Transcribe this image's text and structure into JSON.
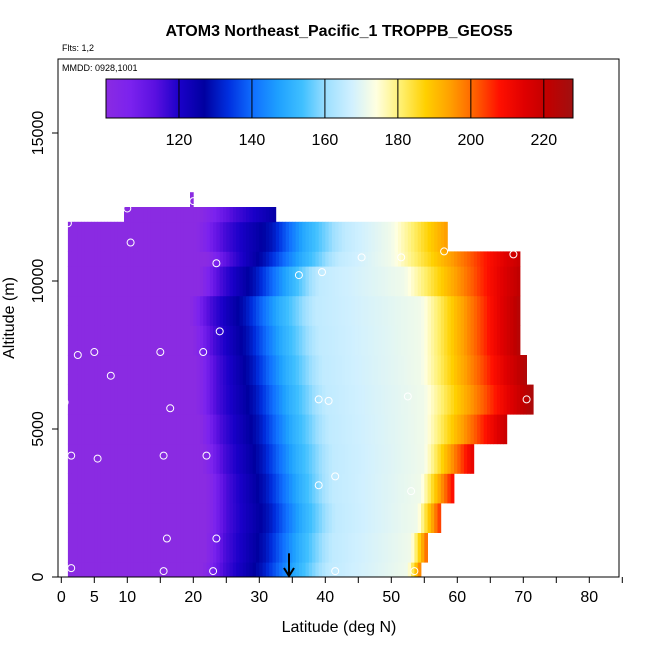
{
  "chart_data": {
    "type": "heatmap",
    "title": "ATOM3 Northeast_Pacific_1 TROPPB_GEOS5",
    "subtitle_lines": [
      "Flts: 1,2",
      "MMDD: 0928,1001"
    ],
    "xlabel": "Latitude (deg N)",
    "ylabel": "Altitude (m)",
    "xlim": [
      -0.5,
      84.5
    ],
    "ylim": [
      0,
      17500
    ],
    "x_ticks": [
      0,
      5,
      10,
      20,
      30,
      40,
      50,
      60,
      70,
      80
    ],
    "x_minor_ticks": [
      15,
      25,
      35,
      45,
      55,
      65,
      75,
      85
    ],
    "y_ticks": [
      0,
      5000,
      10000,
      15000
    ],
    "grid": false,
    "colorbar": {
      "placement": "top-inside",
      "min": 100,
      "max": 228,
      "ticks": [
        120,
        140,
        160,
        180,
        200,
        220
      ],
      "colors": [
        "#8a2be2",
        "#7b22ee",
        "#5a10e0",
        "#1a00c8",
        "#0000a0",
        "#0030e0",
        "#1070ff",
        "#1ea0ff",
        "#40c0ff",
        "#a0e0ff",
        "#d0f0ff",
        "#ffffe0",
        "#fff070",
        "#ffd000",
        "#ffa000",
        "#ff6000",
        "#ff1000",
        "#e00000",
        "#c00000",
        "#a01010"
      ]
    },
    "series": [
      {
        "kind": "field",
        "rows": [
          {
            "alt": [
              0,
              500
            ],
            "x_start": 1,
            "x_end": 54.5,
            "lat_breaks": [
              21.5,
              24.5,
              30.5,
              35.5,
              40.5,
              52.5
            ],
            "edge": 200
          },
          {
            "alt": [
              500,
              1500
            ],
            "x_start": 1,
            "x_end": 55.5,
            "lat_breaks": [
              21.8,
              24.8,
              31,
              36,
              41,
              53
            ],
            "edge": 202
          },
          {
            "alt": [
              1500,
              2500
            ],
            "x_start": 1,
            "x_end": 57.5,
            "lat_breaks": [
              22,
              25,
              31.5,
              36.5,
              41.5,
              54
            ],
            "edge": 206
          },
          {
            "alt": [
              2500,
              3500
            ],
            "x_start": 1,
            "x_end": 59.5,
            "lat_breaks": [
              22,
              25,
              31,
              36,
              41,
              54.5
            ],
            "edge": 210
          },
          {
            "alt": [
              3500,
              4500
            ],
            "x_start": 1,
            "x_end": 62.5,
            "lat_breaks": [
              21.5,
              24.5,
              30.5,
              35.5,
              41,
              55
            ],
            "edge": 214
          },
          {
            "alt": [
              4500,
              5500
            ],
            "x_start": 1,
            "x_end": 67.5,
            "lat_breaks": [
              21,
              24,
              30,
              35,
              40.5,
              55
            ],
            "edge": 220
          },
          {
            "alt": [
              5500,
              6500
            ],
            "x_start": 1,
            "x_end": 71.5,
            "lat_breaks": [
              20.5,
              23.5,
              29.5,
              34.5,
              40,
              55
            ],
            "edge": 226
          },
          {
            "alt": [
              6500,
              7500
            ],
            "x_start": 1,
            "x_end": 70.5,
            "lat_breaks": [
              20.5,
              23.5,
              29,
              34,
              39.5,
              54.5
            ],
            "edge": 225
          },
          {
            "alt": [
              7500,
              8500
            ],
            "x_start": 1,
            "x_end": 69.5,
            "lat_breaks": [
              20,
              23,
              28.5,
              33.5,
              39,
              54.5
            ],
            "edge": 224
          },
          {
            "alt": [
              8500,
              9500
            ],
            "x_start": 1,
            "x_end": 69.5,
            "lat_breaks": [
              19.5,
              22.5,
              28,
              33,
              38.5,
              54.5
            ],
            "edge": 224
          },
          {
            "alt": [
              9500,
              10500
            ],
            "x_start": 1,
            "x_end": 69.5,
            "lat_breaks": [
              21,
              24,
              29.5,
              34.5,
              39,
              52
            ],
            "edge": 222
          },
          {
            "alt": [
              10500,
              11000
            ],
            "x_start": 1,
            "x_end": 69.5,
            "lat_breaks": [
              22,
              25.5,
              31,
              36.5,
              42,
              50
            ],
            "edge": 220
          },
          {
            "alt": [
              11000,
              12000
            ],
            "x_start": 1,
            "x_end": 58.5,
            "lat_breaks": [
              20.5,
              24.5,
              32,
              37,
              43,
              50
            ],
            "edge": 195
          },
          {
            "alt": [
              12000,
              12500
            ],
            "x_start": 9.5,
            "x_end": 32.5,
            "lat_breaks": [
              21,
              26,
              35,
              40,
              46,
              55
            ],
            "edge": 135
          },
          {
            "alt": [
              12500,
              13000
            ],
            "x_start": 19.5,
            "x_end": 20,
            "lat_breaks": [
              40,
              45,
              50,
              55,
              60,
              70
            ],
            "edge": 105
          }
        ]
      },
      {
        "kind": "flight_points",
        "points": [
          [
            10,
            12450
          ],
          [
            1,
            11950
          ],
          [
            10.5,
            11300
          ],
          [
            23.5,
            10600
          ],
          [
            20,
            12700
          ],
          [
            24,
            8300
          ],
          [
            2.5,
            7500
          ],
          [
            5,
            7600
          ],
          [
            15,
            7600
          ],
          [
            21.5,
            7600
          ],
          [
            7.5,
            6800
          ],
          [
            16.5,
            5700
          ],
          [
            0.5,
            5900
          ],
          [
            1.5,
            4100
          ],
          [
            5.5,
            4000
          ],
          [
            15.5,
            4100
          ],
          [
            22,
            4100
          ],
          [
            16,
            1300
          ],
          [
            23.5,
            1300
          ],
          [
            15.5,
            200
          ],
          [
            23,
            200
          ],
          [
            1.5,
            300
          ],
          [
            39,
            6000
          ],
          [
            40.5,
            5950
          ],
          [
            52.5,
            6100
          ],
          [
            41.5,
            3400
          ],
          [
            39,
            3100
          ],
          [
            53,
            2900
          ],
          [
            36,
            10200
          ],
          [
            39.5,
            10300
          ],
          [
            45.5,
            10800
          ],
          [
            51.5,
            10800
          ],
          [
            58,
            11000
          ],
          [
            68.5,
            10900
          ],
          [
            70.5,
            6000
          ],
          [
            41.5,
            200
          ],
          [
            53.5,
            200
          ]
        ]
      }
    ],
    "annotations": [
      {
        "type": "arrow",
        "x": 34.5,
        "y_from": 800,
        "y_to": 0
      }
    ]
  }
}
